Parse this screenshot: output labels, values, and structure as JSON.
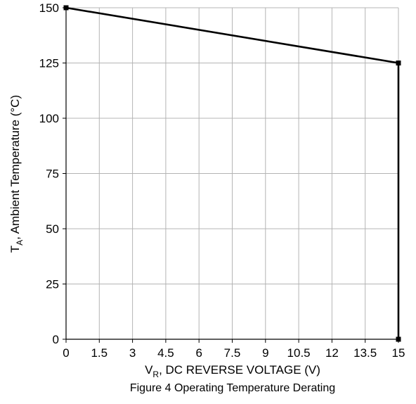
{
  "chart_data": {
    "type": "line",
    "caption": "Figure 4 Operating Temperature Derating",
    "xlabel": {
      "main": "V",
      "sub": "R",
      "rest": ", DC REVERSE VOLTAGE (V)"
    },
    "ylabel": {
      "main": "T",
      "sub": "A",
      "rest": ", Ambient Temperature (°C)"
    },
    "xlim": [
      0,
      15
    ],
    "ylim": [
      0,
      150
    ],
    "xticks": [
      0,
      1.5,
      3,
      4.5,
      6,
      7.5,
      9,
      10.5,
      12,
      13.5,
      15
    ],
    "xtick_labels": [
      "0",
      "1.5",
      "3",
      "4.5",
      "6",
      "7.5",
      "9",
      "10.5",
      "12",
      "13.5",
      "15"
    ],
    "yticks": [
      0,
      25,
      50,
      75,
      100,
      125,
      150
    ],
    "ytick_labels": [
      "0",
      "25",
      "50",
      "75",
      "100",
      "125",
      "150"
    ],
    "grid": true,
    "series": [
      {
        "x": [
          0,
          15,
          15
        ],
        "y": [
          150,
          125,
          0
        ],
        "markers": true
      }
    ],
    "colors": {
      "line": "#000000",
      "grid": "#b4b4b4",
      "axis": "#000000"
    }
  }
}
